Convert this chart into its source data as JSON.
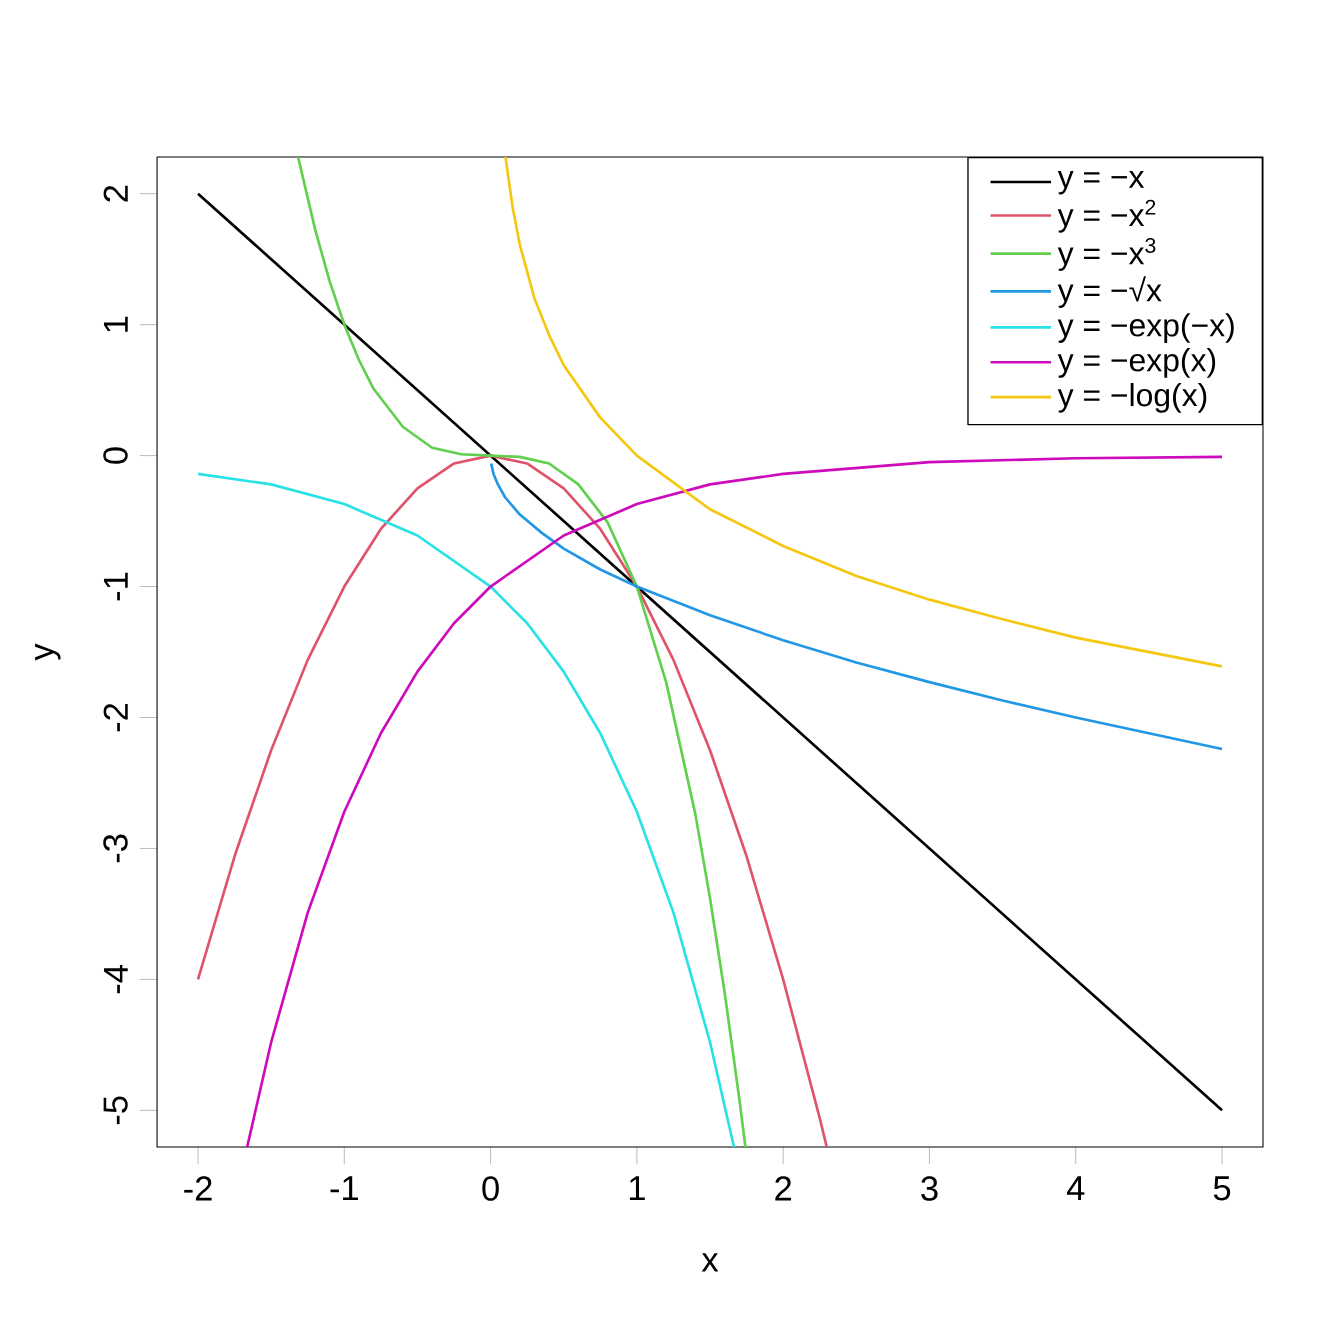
{
  "chart_data": {
    "type": "line",
    "xlabel": "x",
    "ylabel": "y",
    "xlim": [
      -2.28,
      5.28
    ],
    "ylim": [
      -5.28,
      2.28
    ],
    "xticks": [
      -2,
      -1,
      0,
      1,
      2,
      3,
      4,
      5
    ],
    "yticks": [
      -5,
      -4,
      -3,
      -2,
      -1,
      0,
      1,
      2
    ],
    "legend": "top right",
    "marker": "none",
    "line_style": "solid",
    "grid": false,
    "series": [
      {
        "name": "y = −x",
        "color": "#000000",
        "x": [
          -2,
          5
        ],
        "values": [
          2,
          -5
        ]
      },
      {
        "name": "y = −x$^{2}$",
        "color": "#df536b",
        "x": [
          -2,
          -1.75,
          -1.5,
          -1.25,
          -1,
          -0.75,
          -0.5,
          -0.25,
          0,
          0.25,
          0.5,
          0.75,
          1,
          1.25,
          1.5,
          1.75,
          2,
          2.25,
          2.298
        ],
        "values": [
          -4,
          -3.06,
          -2.25,
          -1.56,
          -1,
          -0.56,
          -0.25,
          -0.06,
          0,
          -0.06,
          -0.25,
          -0.56,
          -1,
          -1.56,
          -2.25,
          -3.06,
          -4,
          -5.06,
          -5.28
        ]
      },
      {
        "name": "y = −x$^{3}$",
        "color": "#61d04f",
        "x": [
          -1.316,
          -1.2,
          -1.1,
          -1,
          -0.9,
          -0.8,
          -0.6,
          -0.4,
          -0.2,
          0,
          0.2,
          0.4,
          0.6,
          0.8,
          1,
          1.2,
          1.4,
          1.5,
          1.6,
          1.7,
          1.742
        ],
        "values": [
          2.28,
          1.73,
          1.33,
          1,
          0.73,
          0.51,
          0.22,
          0.06,
          0.01,
          0,
          -0.01,
          -0.06,
          -0.22,
          -0.51,
          -1,
          -1.73,
          -2.74,
          -3.38,
          -4.1,
          -4.91,
          -5.28
        ]
      },
      {
        "name": "y = −√x",
        "color": "#2297e6",
        "x": [
          0.004,
          0.02,
          0.05,
          0.1,
          0.2,
          0.35,
          0.5,
          0.75,
          1,
          1.5,
          2,
          2.5,
          3,
          3.5,
          4,
          4.5,
          5
        ],
        "values": [
          -0.06,
          -0.14,
          -0.22,
          -0.32,
          -0.45,
          -0.59,
          -0.71,
          -0.87,
          -1,
          -1.22,
          -1.41,
          -1.58,
          -1.73,
          -1.87,
          -2,
          -2.12,
          -2.24
        ]
      },
      {
        "name": "y = −exp(−x)",
        "color": "#28e2e5",
        "x": [
          -2,
          -1.5,
          -1,
          -0.5,
          0,
          0.25,
          0.5,
          0.75,
          1,
          1.25,
          1.5,
          1.664
        ],
        "values": [
          -0.14,
          -0.22,
          -0.37,
          -0.61,
          -1,
          -1.28,
          -1.65,
          -2.12,
          -2.72,
          -3.49,
          -4.48,
          -5.28
        ]
      },
      {
        "name": "y = −exp(x)",
        "color": "#cd0bbc",
        "x": [
          -1.664,
          -1.5,
          -1.25,
          -1,
          -0.75,
          -0.5,
          -0.25,
          0,
          0.5,
          1,
          1.5,
          2,
          3,
          4,
          5
        ],
        "values": [
          -5.28,
          -4.48,
          -3.49,
          -2.72,
          -2.12,
          -1.65,
          -1.28,
          -1,
          -0.61,
          -0.37,
          -0.22,
          -0.14,
          -0.05,
          -0.02,
          -0.01
        ]
      },
      {
        "name": "y = −log(x)",
        "color": "#f5c710",
        "x": [
          0.102,
          0.15,
          0.2,
          0.3,
          0.4,
          0.5,
          0.75,
          1,
          1.5,
          2,
          2.5,
          3,
          3.5,
          4,
          4.5,
          5
        ],
        "values": [
          2.28,
          1.9,
          1.61,
          1.2,
          0.92,
          0.69,
          0.29,
          0,
          -0.41,
          -0.69,
          -0.92,
          -1.1,
          -1.25,
          -1.39,
          -1.5,
          -1.61
        ]
      }
    ]
  }
}
